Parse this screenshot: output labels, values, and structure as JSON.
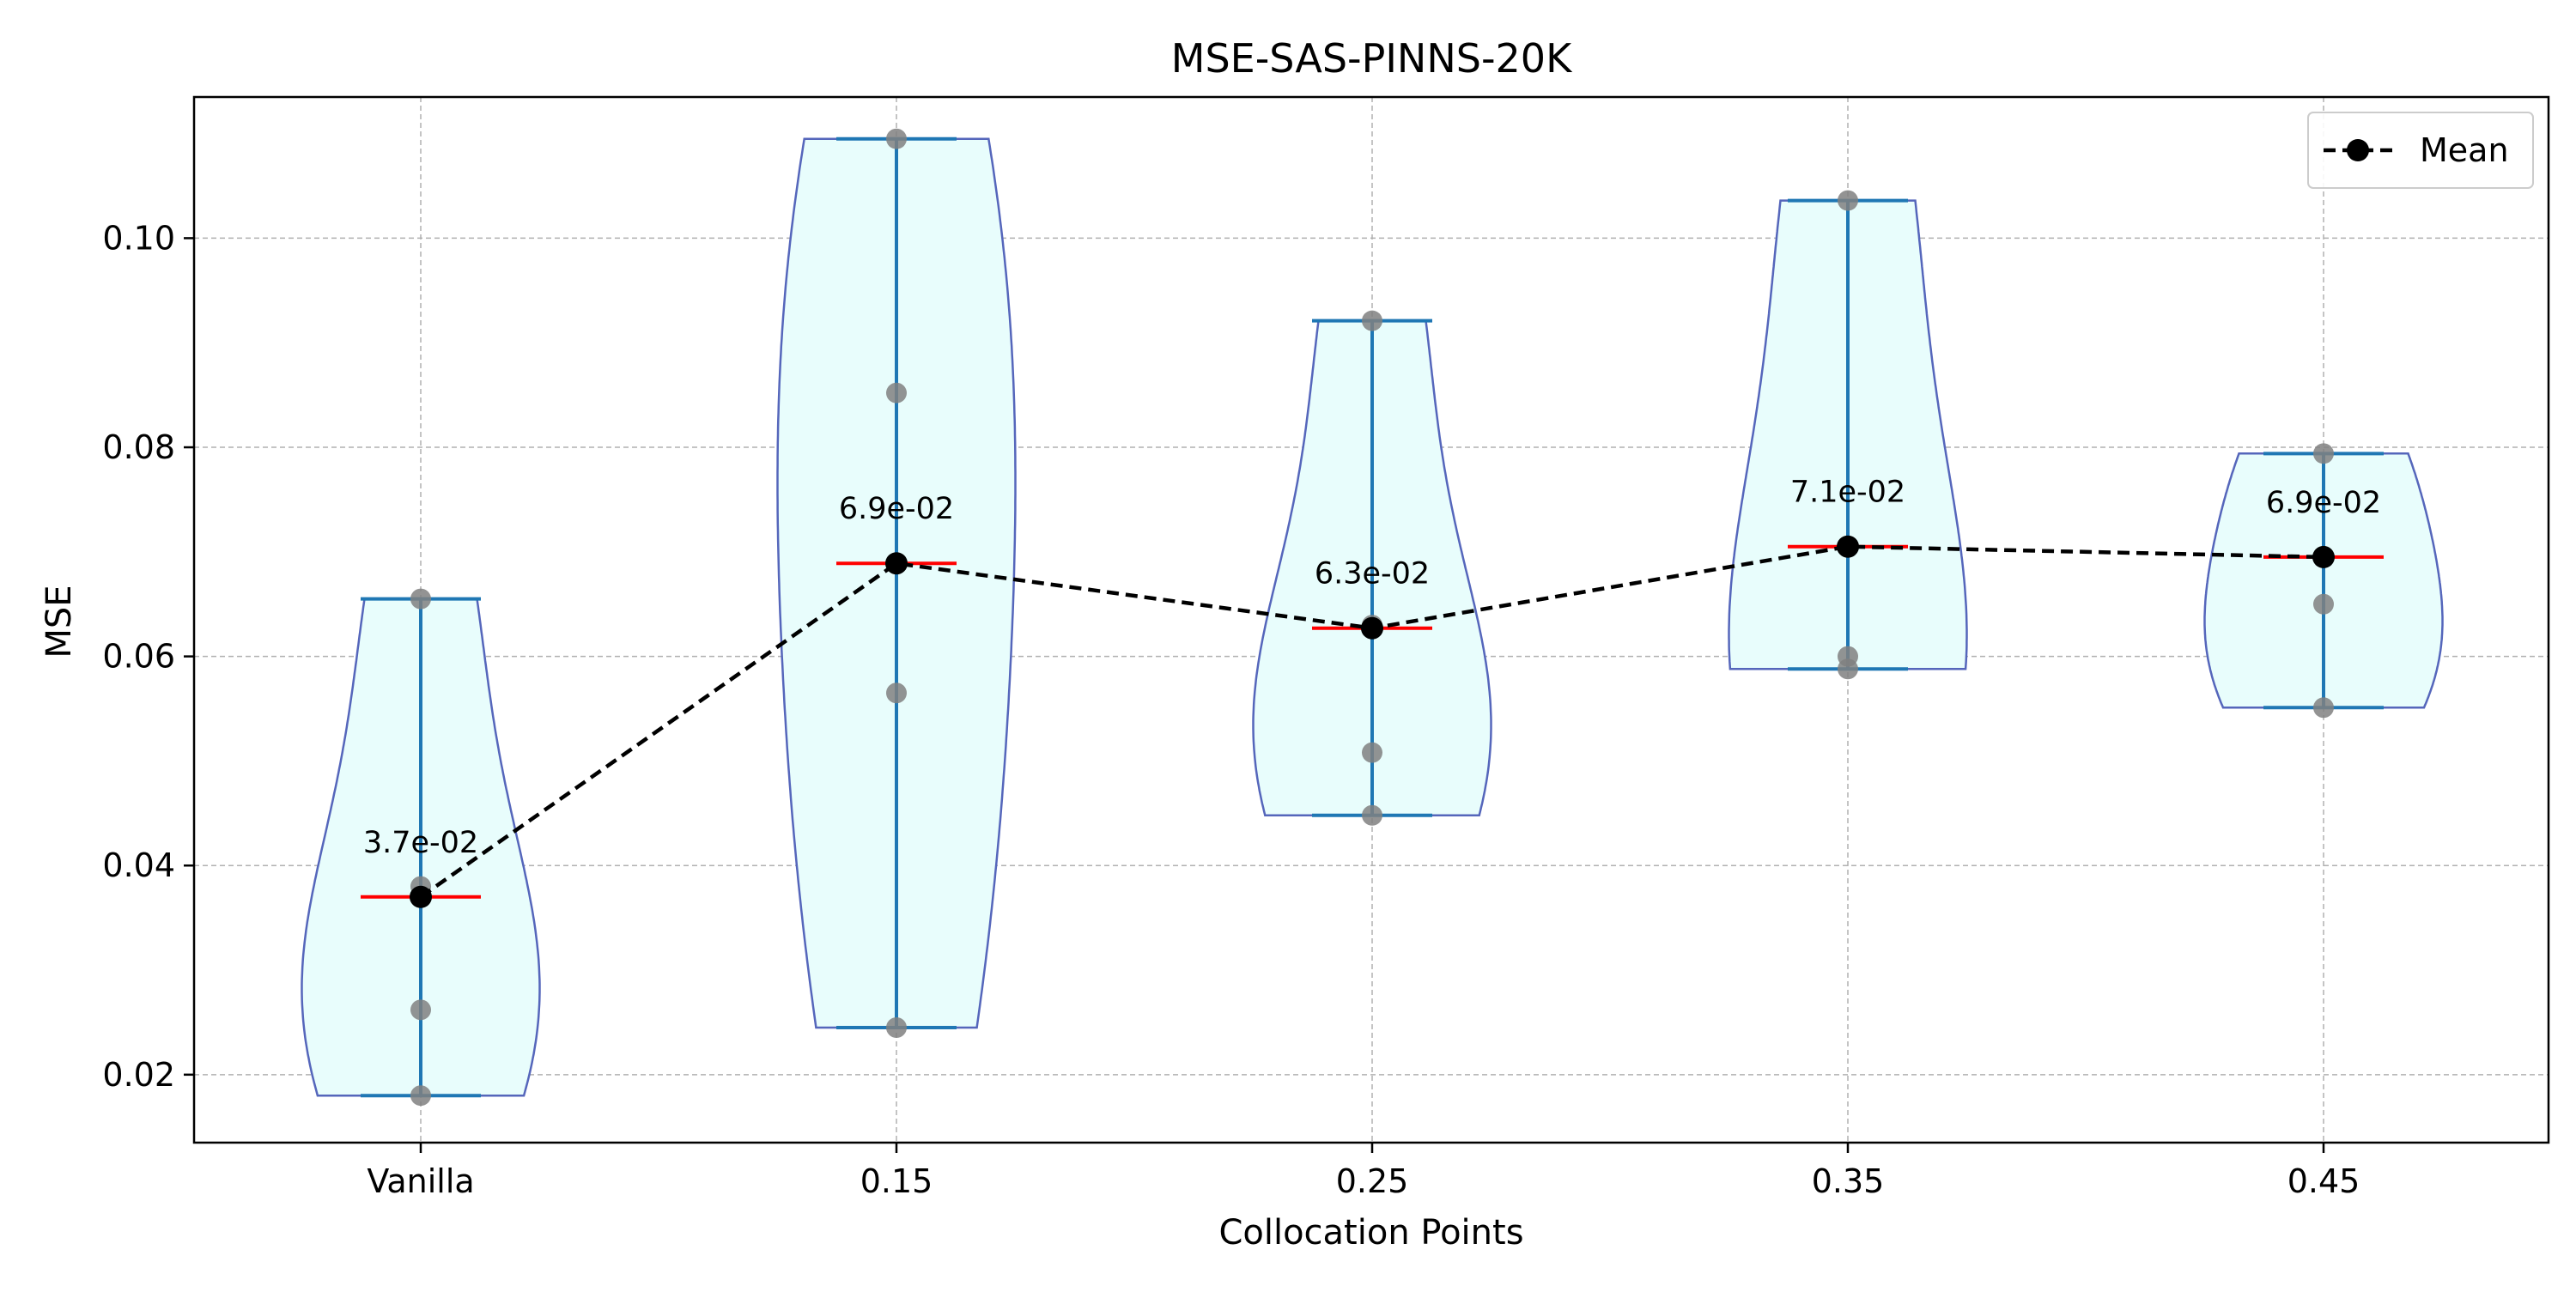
{
  "chart_data": {
    "type": "violin",
    "title": "MSE-SAS-PINNS-20K",
    "xlabel": "Collocation Points",
    "ylabel": "MSE",
    "categories": [
      "Vanilla",
      "0.15",
      "0.25",
      "0.35",
      "0.45"
    ],
    "ylim": [
      0.0135,
      0.1135
    ],
    "yticks": [
      0.02,
      0.04,
      0.06,
      0.08,
      0.1
    ],
    "ytick_labels": [
      "0.02",
      "0.04",
      "0.06",
      "0.08",
      "0.10"
    ],
    "grid": true,
    "legend": {
      "position": "top-right",
      "entries": [
        "Mean"
      ]
    },
    "groups": [
      {
        "category": "Vanilla",
        "points": [
          0.018,
          0.0262,
          0.038,
          0.0655
        ],
        "min": 0.018,
        "max": 0.0655,
        "mean": 0.037,
        "mean_label": "3.7e-02"
      },
      {
        "category": "0.15",
        "points": [
          0.0245,
          0.0565,
          0.0852,
          0.1095
        ],
        "min": 0.0245,
        "max": 0.1095,
        "mean": 0.0689,
        "mean_label": "6.9e-02"
      },
      {
        "category": "0.25",
        "points": [
          0.0448,
          0.0508,
          0.063,
          0.0921
        ],
        "min": 0.0448,
        "max": 0.0921,
        "mean": 0.0627,
        "mean_label": "6.3e-02"
      },
      {
        "category": "0.35",
        "points": [
          0.0588,
          0.06,
          0.1036
        ],
        "min": 0.0588,
        "max": 0.1036,
        "mean": 0.0705,
        "mean_label": "7.1e-02"
      },
      {
        "category": "0.45",
        "points": [
          0.0551,
          0.065,
          0.0794
        ],
        "min": 0.0551,
        "max": 0.0794,
        "mean": 0.0695,
        "mean_label": "6.9e-02"
      }
    ],
    "mean_series": {
      "name": "Mean",
      "values": [
        0.037,
        0.0689,
        0.0627,
        0.0705,
        0.0695
      ]
    },
    "colors": {
      "violin_fill": "#e8fdfc",
      "violin_edge": "#5566bb",
      "whisker": "#1f77b4",
      "median_line": "#ff0000",
      "points": "#808080",
      "mean_line": "#000000",
      "grid": "#b0b0b0"
    }
  }
}
